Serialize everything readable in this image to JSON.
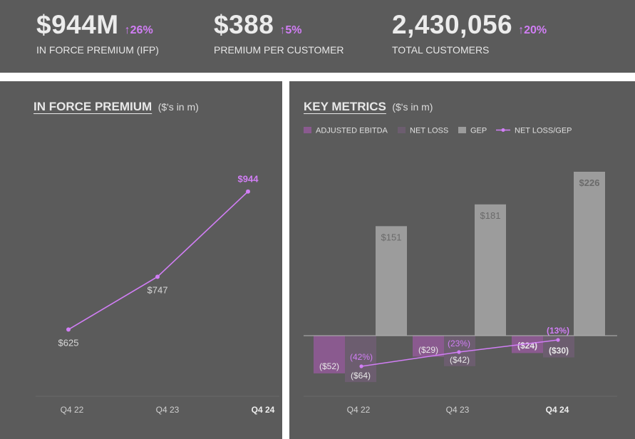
{
  "kpis": [
    {
      "value": "$944M",
      "delta": "↑26%",
      "label": "IN FORCE PREMIUM (IFP)"
    },
    {
      "value": "$388",
      "delta": "↑5%",
      "label": "PREMIUM PER CUSTOMER"
    },
    {
      "value": "2,430,056",
      "delta": "↑20%",
      "label": "TOTAL CUSTOMERS"
    }
  ],
  "left_panel": {
    "title": "IN FORCE PREMIUM",
    "unit": "($'s in m)"
  },
  "right_panel": {
    "title": "KEY METRICS",
    "unit": "($'s in m)"
  },
  "colors": {
    "accent": "#d17ef5",
    "ebitda": "#8a5a8f",
    "netloss": "#6c5d6f",
    "gep": "#9c9c9c"
  },
  "chart_data": [
    {
      "type": "line",
      "title": "IN FORCE PREMIUM",
      "categories": [
        "Q4 22",
        "Q4 23",
        "Q4 24"
      ],
      "series": [
        {
          "values": [
            625,
            747,
            944
          ]
        }
      ],
      "data_labels": [
        "$625",
        "$747",
        "$944"
      ],
      "ylim": [
        540,
        960
      ],
      "grid": false
    },
    {
      "type": "bar",
      "title": "KEY METRICS",
      "categories": [
        "Q4 22",
        "Q4 23",
        "Q4 24"
      ],
      "legend": [
        "ADJUSTED EBITDA",
        "NET LOSS",
        "GEP",
        "NET LOSS/GEP"
      ],
      "legend_position": "top",
      "series": [
        {
          "name": "ADJUSTED EBITDA",
          "values": [
            -52,
            -29,
            -24
          ],
          "labels": [
            "($52)",
            "($29)",
            "($24)"
          ]
        },
        {
          "name": "NET LOSS",
          "values": [
            -64,
            -42,
            -30
          ],
          "labels": [
            "($64)",
            "($42)",
            "($30)"
          ]
        },
        {
          "name": "GEP",
          "values": [
            151,
            181,
            226
          ],
          "labels": [
            "$151",
            "$181",
            "$226"
          ]
        },
        {
          "name": "NET LOSS/GEP",
          "type": "line",
          "values": [
            -42,
            -23,
            -13
          ],
          "labels": [
            "(42%)",
            "(23%)",
            "(13%)"
          ]
        }
      ],
      "ylim": [
        -64,
        226
      ],
      "grid": false
    }
  ]
}
